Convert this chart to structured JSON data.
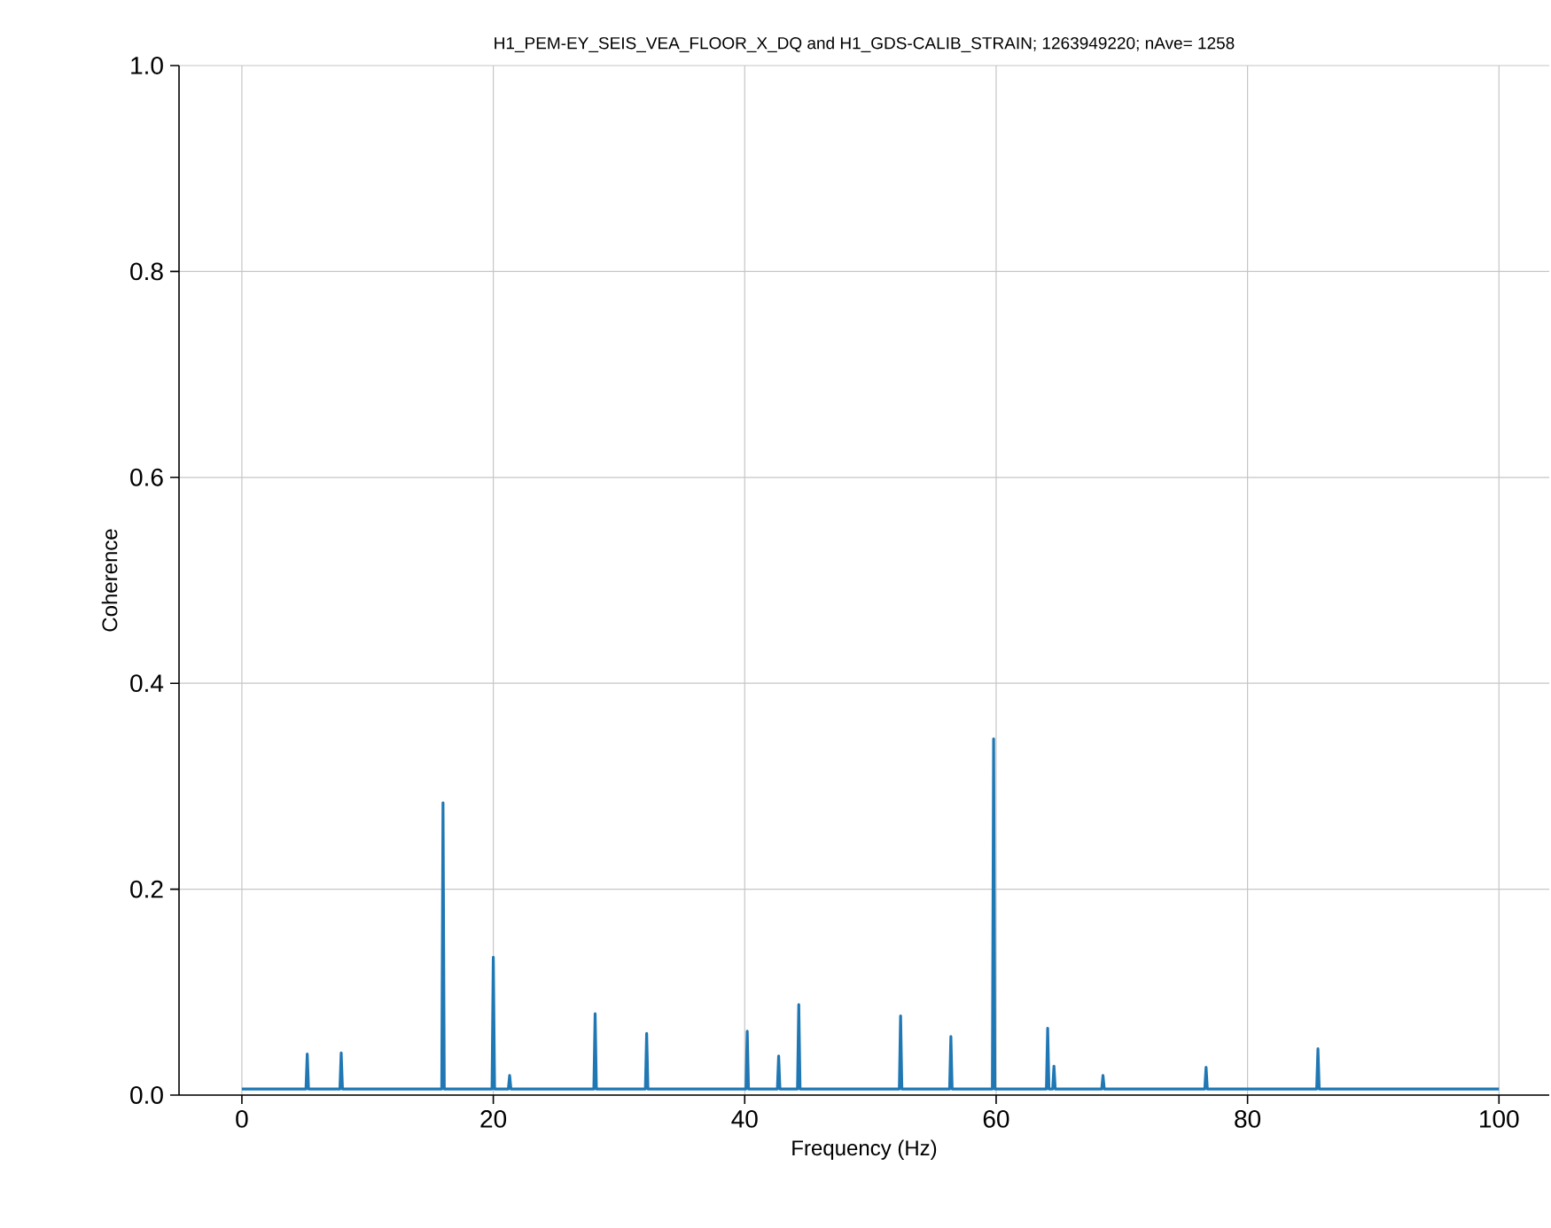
{
  "chart_data": {
    "type": "line",
    "title": "H1_PEM-EY_SEIS_VEA_FLOOR_X_DQ and H1_GDS-CALIB_STRAIN; 1263949220; nAve= 1258",
    "xlabel": "Frequency (Hz)",
    "ylabel": "Coherence",
    "x": [
      0,
      5.1,
      5.2,
      5.3,
      7.8,
      7.9,
      8.0,
      15.9,
      16.0,
      16.1,
      19.9,
      20.0,
      20.1,
      21.2,
      21.3,
      21.4,
      28.0,
      28.1,
      28.2,
      32.1,
      32.2,
      32.3,
      40.1,
      40.2,
      40.3,
      42.6,
      42.7,
      42.8,
      44.2,
      44.3,
      44.4,
      52.3,
      52.4,
      52.5,
      56.3,
      56.4,
      56.5,
      59.7,
      59.8,
      59.9,
      64.0,
      64.1,
      64.2,
      64.5,
      64.6,
      64.7,
      68.4,
      68.5,
      68.6,
      76.6,
      76.7,
      76.8,
      85.5,
      85.6,
      85.7,
      100
    ],
    "series": [
      {
        "color": "#1f77b4",
        "values": [
          0.006,
          0.006,
          0.04,
          0.006,
          0.006,
          0.041,
          0.006,
          0.006,
          0.284,
          0.006,
          0.006,
          0.134,
          0.006,
          0.006,
          0.019,
          0.006,
          0.006,
          0.079,
          0.006,
          0.006,
          0.06,
          0.006,
          0.006,
          0.062,
          0.006,
          0.006,
          0.038,
          0.006,
          0.006,
          0.088,
          0.006,
          0.006,
          0.077,
          0.006,
          0.006,
          0.057,
          0.006,
          0.006,
          0.346,
          0.006,
          0.006,
          0.065,
          0.006,
          0.006,
          0.028,
          0.006,
          0.006,
          0.019,
          0.006,
          0.006,
          0.027,
          0.006,
          0.006,
          0.045,
          0.006,
          0.006
        ]
      }
    ],
    "xlim": [
      -5,
      104
    ],
    "ylim": [
      0,
      1
    ],
    "xticks": [
      0,
      20,
      40,
      60,
      80,
      100
    ],
    "yticks": [
      {
        "value": 0,
        "label": "0.0"
      },
      {
        "value": 0.2,
        "label": "0.2"
      },
      {
        "value": 0.4,
        "label": "0.4"
      },
      {
        "value": 0.6,
        "label": "0.6"
      },
      {
        "value": 0.8,
        "label": "0.8"
      },
      {
        "value": 1,
        "label": "1.0"
      }
    ],
    "grid": true
  }
}
